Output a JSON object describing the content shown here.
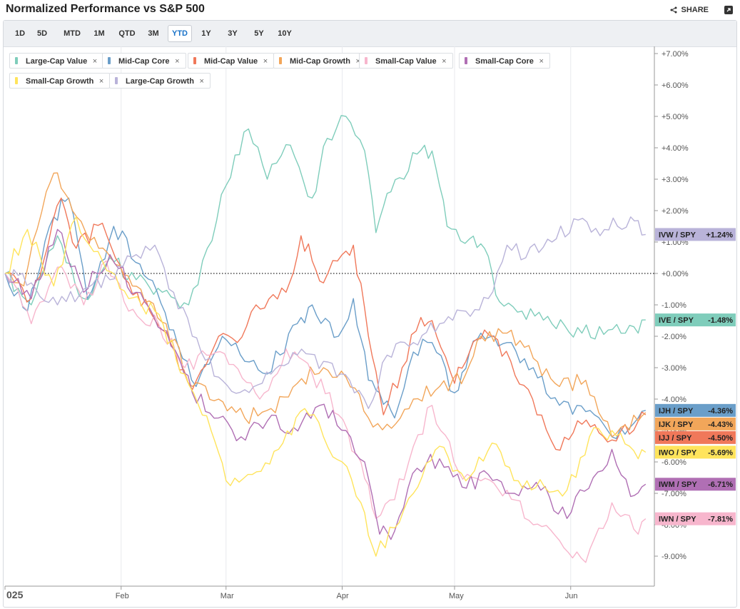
{
  "header": {
    "title": "Normalized Performance vs S&P 500",
    "share_label": "SHARE"
  },
  "ranges": [
    "1D",
    "5D",
    "MTD",
    "1M",
    "QTD",
    "3M",
    "YTD",
    "1Y",
    "3Y",
    "5Y",
    "10Y"
  ],
  "active_range": "YTD",
  "legend_chips": [
    {
      "label": "Large-Cap Value",
      "color": "#7fcdbb"
    },
    {
      "label": "Mid-Cap Core",
      "color": "#6a9ec9"
    },
    {
      "label": "Mid-Cap Value",
      "color": "#f0785a"
    },
    {
      "label": "Mid-Cap Growth",
      "color": "#f2a65a"
    },
    {
      "label": "Small-Cap Value",
      "color": "#f7b6cd"
    },
    {
      "label": "Small-Cap Core",
      "color": "#b06fb4"
    },
    {
      "label": "Small-Cap Growth",
      "color": "#ffe45c"
    },
    {
      "label": "Large-Cap Growth",
      "color": "#b9b3d9"
    }
  ],
  "close_glyph": "×",
  "chart_data": {
    "type": "line",
    "title": "Normalized Performance vs S&P 500",
    "x_tick_labels": [
      {
        "label": "025",
        "date": "2025-01-01"
      },
      {
        "label": "Feb",
        "date": "2025-02-01"
      },
      {
        "label": "Mar",
        "date": "2025-03-01"
      },
      {
        "label": "Apr",
        "date": "2025-04-01"
      },
      {
        "label": "May",
        "date": "2025-05-01"
      },
      {
        "label": "Jun",
        "date": "2025-06-01"
      }
    ],
    "y_ticks": [
      7,
      6,
      5,
      4,
      3,
      2,
      1,
      0,
      -1,
      -2,
      -3,
      -4,
      -5,
      -6,
      -7,
      -8,
      -9
    ],
    "y_tick_labels": [
      "+7.00%",
      "+6.00%",
      "+5.00%",
      "+4.00%",
      "+3.00%",
      "+2.00%",
      "+1.00%",
      "+0.00%",
      "-1.00%",
      "-2.00%",
      "-3.00%",
      "-4.00%",
      "-5.00%",
      "-6.00%",
      "-7.00%",
      "-8.00%",
      "-9.00%"
    ],
    "ylim": [
      -10,
      7.4
    ],
    "zero_line": true,
    "series": [
      {
        "name": "Large-Cap Value",
        "ticker": "IVE / SPY",
        "value_label": "-1.48%",
        "end": -1.48,
        "color": "#7fcdbb",
        "points": [
          [
            "2025-01-01",
            0
          ],
          [
            "2025-01-08",
            -1.0
          ],
          [
            "2025-01-15",
            1.2
          ],
          [
            "2025-01-22",
            -0.8
          ],
          [
            "2025-01-29",
            0.5
          ],
          [
            "2025-02-05",
            -0.2
          ],
          [
            "2025-02-12",
            -0.6
          ],
          [
            "2025-02-19",
            -1.0
          ],
          [
            "2025-02-24",
            0.8
          ],
          [
            "2025-03-01",
            2.8
          ],
          [
            "2025-03-07",
            4.6
          ],
          [
            "2025-03-12",
            3.0
          ],
          [
            "2025-03-17",
            4.1
          ],
          [
            "2025-03-24",
            2.4
          ],
          [
            "2025-03-28",
            4.3
          ],
          [
            "2025-04-02",
            5.0
          ],
          [
            "2025-04-07",
            3.9
          ],
          [
            "2025-04-10",
            1.3
          ],
          [
            "2025-04-14",
            2.6
          ],
          [
            "2025-04-21",
            3.8
          ],
          [
            "2025-04-25",
            3.9
          ],
          [
            "2025-04-29",
            1.5
          ],
          [
            "2025-05-05",
            1.1
          ],
          [
            "2025-05-09",
            0.8
          ],
          [
            "2025-05-13",
            -0.9
          ],
          [
            "2025-05-19",
            -1.2
          ],
          [
            "2025-05-27",
            -1.6
          ],
          [
            "2025-06-04",
            -1.9
          ],
          [
            "2025-06-11",
            -1.8
          ],
          [
            "2025-06-19",
            -1.9
          ],
          [
            "2025-06-21",
            -1.48
          ]
        ]
      },
      {
        "name": "Mid-Cap Core",
        "ticker": "IJH / SPY",
        "value_label": "-4.36%",
        "end": -4.36,
        "color": "#6a9ec9",
        "points": [
          [
            "2025-01-01",
            0
          ],
          [
            "2025-01-07",
            -1.2
          ],
          [
            "2025-01-14",
            1.8
          ],
          [
            "2025-01-18",
            2.4
          ],
          [
            "2025-01-23",
            -0.8
          ],
          [
            "2025-01-30",
            1.5
          ],
          [
            "2025-02-06",
            0.3
          ],
          [
            "2025-02-15",
            -1.8
          ],
          [
            "2025-02-21",
            -3.6
          ],
          [
            "2025-02-28",
            -2.0
          ],
          [
            "2025-03-06",
            -2.8
          ],
          [
            "2025-03-12",
            -3.2
          ],
          [
            "2025-03-20",
            -1.6
          ],
          [
            "2025-03-24",
            -1.0
          ],
          [
            "2025-03-31",
            -2.0
          ],
          [
            "2025-04-04",
            -0.8
          ],
          [
            "2025-04-08",
            -3.4
          ],
          [
            "2025-04-11",
            -3.8
          ],
          [
            "2025-04-15",
            -4.6
          ],
          [
            "2025-04-20",
            -2.5
          ],
          [
            "2025-04-25",
            -2.2
          ],
          [
            "2025-05-01",
            -3.8
          ],
          [
            "2025-05-05",
            -2.5
          ],
          [
            "2025-05-08",
            -1.9
          ],
          [
            "2025-05-15",
            -2.2
          ],
          [
            "2025-05-22",
            -3.0
          ],
          [
            "2025-05-29",
            -4.2
          ],
          [
            "2025-06-05",
            -4.4
          ],
          [
            "2025-06-12",
            -5.2
          ],
          [
            "2025-06-19",
            -4.6
          ],
          [
            "2025-06-21",
            -4.36
          ]
        ]
      },
      {
        "name": "Mid-Cap Value",
        "ticker": "IJJ / SPY",
        "value_label": "-4.50%",
        "end": -4.5,
        "color": "#f0785a",
        "points": [
          [
            "2025-01-01",
            0
          ],
          [
            "2025-01-08",
            -0.8
          ],
          [
            "2025-01-16",
            2.4
          ],
          [
            "2025-01-20",
            0.8
          ],
          [
            "2025-01-27",
            1.6
          ],
          [
            "2025-02-03",
            -0.3
          ],
          [
            "2025-02-12",
            -1.8
          ],
          [
            "2025-02-20",
            -3.7
          ],
          [
            "2025-02-27",
            -2.0
          ],
          [
            "2025-03-04",
            -2.2
          ],
          [
            "2025-03-09",
            -1.0
          ],
          [
            "2025-03-17",
            -0.6
          ],
          [
            "2025-03-21",
            1.2
          ],
          [
            "2025-03-24",
            0.4
          ],
          [
            "2025-03-27",
            -0.3
          ],
          [
            "2025-04-01",
            0.6
          ],
          [
            "2025-04-04",
            0.9
          ],
          [
            "2025-04-08",
            -2.0
          ],
          [
            "2025-04-12",
            -4.5
          ],
          [
            "2025-04-17",
            -3.0
          ],
          [
            "2025-04-22",
            -1.4
          ],
          [
            "2025-04-25",
            -1.5
          ],
          [
            "2025-05-01",
            -3.5
          ],
          [
            "2025-05-05",
            -2.5
          ],
          [
            "2025-05-09",
            -1.8
          ],
          [
            "2025-05-16",
            -2.8
          ],
          [
            "2025-05-23",
            -4.5
          ],
          [
            "2025-05-28",
            -5.6
          ],
          [
            "2025-06-04",
            -4.8
          ],
          [
            "2025-06-12",
            -5.3
          ],
          [
            "2025-06-19",
            -4.7
          ],
          [
            "2025-06-21",
            -4.5
          ]
        ]
      },
      {
        "name": "Mid-Cap Growth",
        "ticker": "IJK / SPY",
        "value_label": "-4.43%",
        "end": -4.43,
        "color": "#f2a65a",
        "points": [
          [
            "2025-01-01",
            0
          ],
          [
            "2025-01-06",
            -0.4
          ],
          [
            "2025-01-12",
            2.6
          ],
          [
            "2025-01-15",
            3.2
          ],
          [
            "2025-01-19",
            2.0
          ],
          [
            "2025-01-26",
            0.8
          ],
          [
            "2025-02-04",
            -0.4
          ],
          [
            "2025-02-13",
            -1.6
          ],
          [
            "2025-02-20",
            -3.6
          ],
          [
            "2025-02-27",
            -4.0
          ],
          [
            "2025-03-06",
            -4.6
          ],
          [
            "2025-03-13",
            -4.3
          ],
          [
            "2025-03-20",
            -3.5
          ],
          [
            "2025-03-27",
            -3.0
          ],
          [
            "2025-04-02",
            -3.3
          ],
          [
            "2025-04-08",
            -4.6
          ],
          [
            "2025-04-13",
            -4.8
          ],
          [
            "2025-04-20",
            -4.0
          ],
          [
            "2025-04-27",
            -3.6
          ],
          [
            "2025-05-04",
            -3.2
          ],
          [
            "2025-05-08",
            -2.0
          ],
          [
            "2025-05-15",
            -1.9
          ],
          [
            "2025-05-22",
            -2.7
          ],
          [
            "2025-05-29",
            -3.6
          ],
          [
            "2025-06-05",
            -3.4
          ],
          [
            "2025-06-12",
            -5.2
          ],
          [
            "2025-06-19",
            -4.7
          ],
          [
            "2025-06-21",
            -4.43
          ]
        ]
      },
      {
        "name": "Small-Cap Value",
        "ticker": "IWN / SPY",
        "value_label": "-7.81%",
        "end": -7.81,
        "color": "#f7b6cd",
        "points": [
          [
            "2025-01-01",
            0
          ],
          [
            "2025-01-08",
            -1.6
          ],
          [
            "2025-01-15",
            0.2
          ],
          [
            "2025-01-22",
            -1.0
          ],
          [
            "2025-01-28",
            0.4
          ],
          [
            "2025-02-03",
            -1.2
          ],
          [
            "2025-02-11",
            -1.6
          ],
          [
            "2025-02-18",
            -3.0
          ],
          [
            "2025-02-25",
            -2.6
          ],
          [
            "2025-03-03",
            -2.9
          ],
          [
            "2025-03-10",
            -4.0
          ],
          [
            "2025-03-17",
            -2.4
          ],
          [
            "2025-03-24",
            -3.2
          ],
          [
            "2025-03-31",
            -4.5
          ],
          [
            "2025-04-06",
            -6.0
          ],
          [
            "2025-04-10",
            -7.8
          ],
          [
            "2025-04-15",
            -7.2
          ],
          [
            "2025-04-20",
            -5.5
          ],
          [
            "2025-04-25",
            -4.2
          ],
          [
            "2025-05-02",
            -6.3
          ],
          [
            "2025-05-08",
            -6.6
          ],
          [
            "2025-05-15",
            -6.9
          ],
          [
            "2025-05-22",
            -8.0
          ],
          [
            "2025-05-29",
            -8.5
          ],
          [
            "2025-06-05",
            -9.2
          ],
          [
            "2025-06-12",
            -7.3
          ],
          [
            "2025-06-19",
            -8.3
          ],
          [
            "2025-06-21",
            -7.81
          ]
        ]
      },
      {
        "name": "Small-Cap Core",
        "ticker": "IWM / SPY",
        "value_label": "-6.71%",
        "end": -6.71,
        "color": "#b06fb4",
        "points": [
          [
            "2025-01-01",
            0
          ],
          [
            "2025-01-08",
            -0.8
          ],
          [
            "2025-01-15",
            1.4
          ],
          [
            "2025-01-22",
            -0.6
          ],
          [
            "2025-01-29",
            0.6
          ],
          [
            "2025-02-05",
            -0.6
          ],
          [
            "2025-02-12",
            -1.8
          ],
          [
            "2025-02-20",
            -3.8
          ],
          [
            "2025-02-27",
            -4.6
          ],
          [
            "2025-03-05",
            -5.2
          ],
          [
            "2025-03-12",
            -4.7
          ],
          [
            "2025-03-19",
            -4.9
          ],
          [
            "2025-03-26",
            -4.2
          ],
          [
            "2025-04-02",
            -5.0
          ],
          [
            "2025-04-07",
            -6.0
          ],
          [
            "2025-04-11",
            -8.3
          ],
          [
            "2025-04-15",
            -8.2
          ],
          [
            "2025-04-21",
            -6.2
          ],
          [
            "2025-04-27",
            -5.9
          ],
          [
            "2025-05-03",
            -6.8
          ],
          [
            "2025-05-10",
            -6.4
          ],
          [
            "2025-05-17",
            -7.0
          ],
          [
            "2025-05-24",
            -6.9
          ],
          [
            "2025-05-31",
            -7.8
          ],
          [
            "2025-06-07",
            -6.5
          ],
          [
            "2025-06-12",
            -5.6
          ],
          [
            "2025-06-17",
            -7.1
          ],
          [
            "2025-06-21",
            -6.71
          ]
        ]
      },
      {
        "name": "Small-Cap Growth",
        "ticker": "IWO / SPY",
        "value_label": "-5.69%",
        "end": -5.69,
        "color": "#ffe45c",
        "points": [
          [
            "2025-01-01",
            0
          ],
          [
            "2025-01-07",
            1.4
          ],
          [
            "2025-01-14",
            -0.4
          ],
          [
            "2025-01-20",
            1.8
          ],
          [
            "2025-01-27",
            0.4
          ],
          [
            "2025-02-03",
            -0.8
          ],
          [
            "2025-02-10",
            -1.2
          ],
          [
            "2025-02-18",
            -3.2
          ],
          [
            "2025-02-25",
            -5.0
          ],
          [
            "2025-03-01",
            -6.6
          ],
          [
            "2025-03-08",
            -6.4
          ],
          [
            "2025-03-15",
            -5.6
          ],
          [
            "2025-03-22",
            -4.3
          ],
          [
            "2025-03-27",
            -5.2
          ],
          [
            "2025-04-01",
            -6.0
          ],
          [
            "2025-04-06",
            -7.3
          ],
          [
            "2025-04-10",
            -9.0
          ],
          [
            "2025-04-15",
            -8.1
          ],
          [
            "2025-04-20",
            -7.0
          ],
          [
            "2025-04-27",
            -5.5
          ],
          [
            "2025-05-04",
            -6.6
          ],
          [
            "2025-05-11",
            -5.4
          ],
          [
            "2025-05-18",
            -6.6
          ],
          [
            "2025-05-25",
            -6.8
          ],
          [
            "2025-05-31",
            -6.9
          ],
          [
            "2025-06-06",
            -5.2
          ],
          [
            "2025-06-12",
            -5.0
          ],
          [
            "2025-06-19",
            -5.9
          ],
          [
            "2025-06-21",
            -5.69
          ]
        ]
      },
      {
        "name": "Large-Cap Growth",
        "ticker": "IVW / SPY",
        "value_label": "+1.24%",
        "end": 1.24,
        "color": "#b9b3d9",
        "points": [
          [
            "2025-01-01",
            0
          ],
          [
            "2025-01-08",
            -0.3
          ],
          [
            "2025-01-15",
            -1.0
          ],
          [
            "2025-01-22",
            -0.5
          ],
          [
            "2025-01-29",
            -0.2
          ],
          [
            "2025-02-05",
            0.6
          ],
          [
            "2025-02-10",
            0.9
          ],
          [
            "2025-02-15",
            -0.6
          ],
          [
            "2025-02-20",
            -2.0
          ],
          [
            "2025-02-27",
            -3.3
          ],
          [
            "2025-03-06",
            -3.7
          ],
          [
            "2025-03-13",
            -3.2
          ],
          [
            "2025-03-20",
            -2.6
          ],
          [
            "2025-03-27",
            -2.8
          ],
          [
            "2025-04-03",
            -3.4
          ],
          [
            "2025-04-08",
            -4.3
          ],
          [
            "2025-04-13",
            -2.6
          ],
          [
            "2025-04-20",
            -2.2
          ],
          [
            "2025-04-27",
            -1.6
          ],
          [
            "2025-05-04",
            -1.2
          ],
          [
            "2025-05-10",
            -0.8
          ],
          [
            "2025-05-15",
            0.9
          ],
          [
            "2025-05-20",
            0.5
          ],
          [
            "2025-05-27",
            1.0
          ],
          [
            "2025-06-03",
            1.7
          ],
          [
            "2025-06-10",
            1.4
          ],
          [
            "2025-06-17",
            1.8
          ],
          [
            "2025-06-21",
            1.24
          ]
        ]
      }
    ]
  }
}
